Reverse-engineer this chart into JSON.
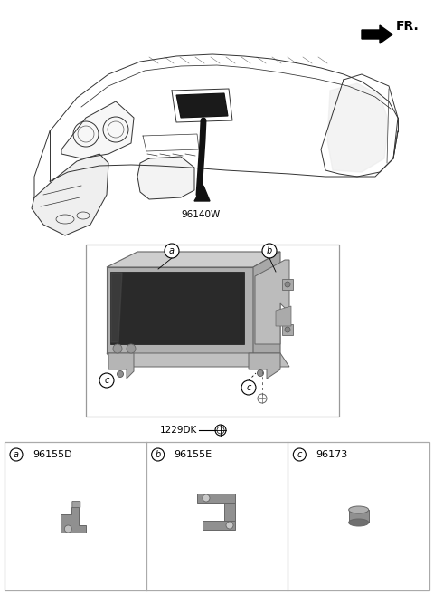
{
  "bg_color": "#ffffff",
  "line_color": "#333333",
  "fr_label": "FR.",
  "main_part_label": "96140W",
  "bolt_label": "1229DK",
  "parts": [
    {
      "letter": "a",
      "code": "96155D"
    },
    {
      "letter": "b",
      "code": "96155E"
    },
    {
      "letter": "c",
      "code": "96173"
    }
  ]
}
